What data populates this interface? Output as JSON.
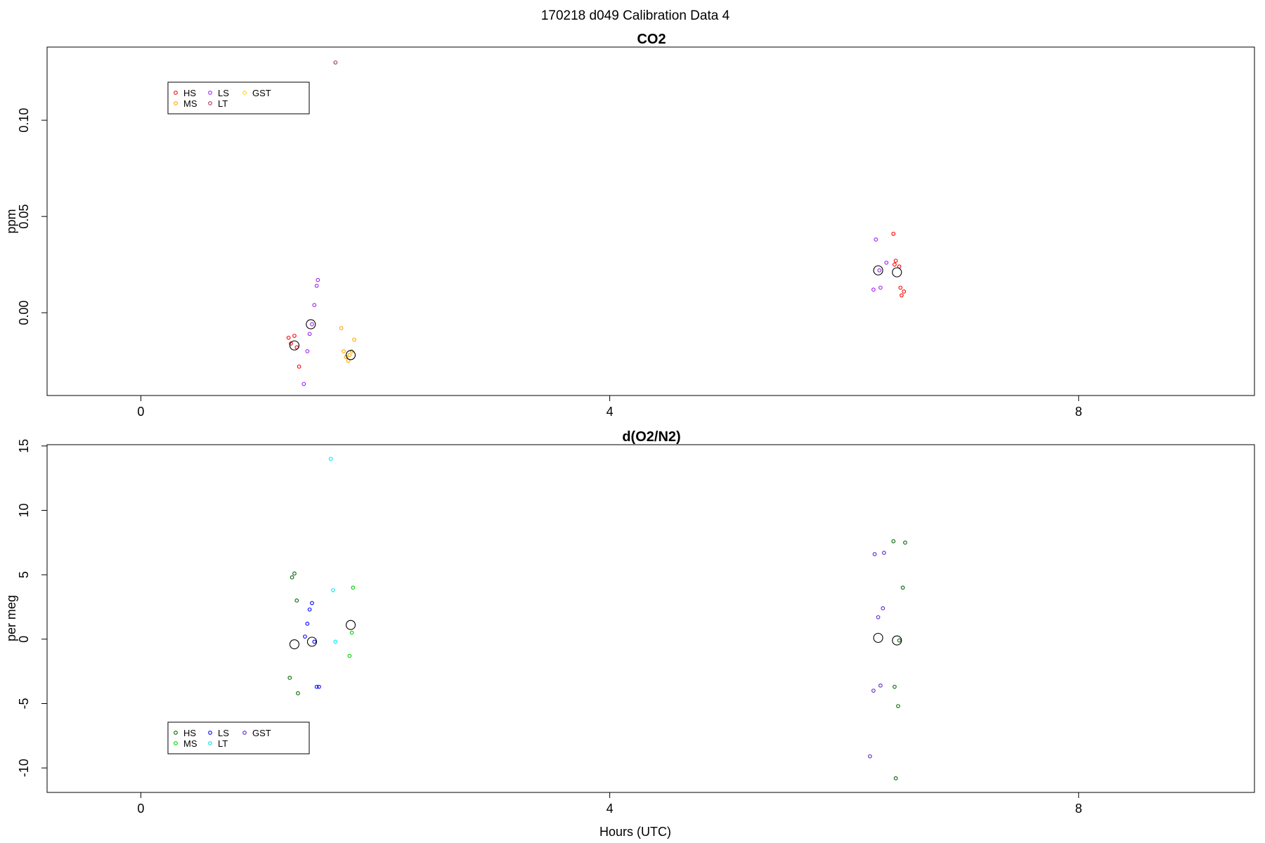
{
  "figure": {
    "suptitle": "170218   d049   Calibration Data 4"
  },
  "chart_data": [
    {
      "type": "scatter",
      "title": "CO2",
      "ylabel": "ppm",
      "xlabel": "",
      "xlim": [
        -0.8,
        9.5
      ],
      "ylim": [
        -0.043,
        0.138
      ],
      "xticks": [
        0,
        4,
        8
      ],
      "xticklabels": [
        "0",
        "4",
        "8"
      ],
      "yticks": [
        0.0,
        0.05,
        0.1
      ],
      "yticklabels": [
        "0.00",
        "0.05",
        "0.10"
      ],
      "grid": false,
      "legend": {
        "placement": "top-left",
        "columns": 3
      },
      "series": [
        {
          "name": "HS",
          "color": "#ff0000",
          "points": [
            [
              1.26,
              -0.013
            ],
            [
              1.31,
              -0.012
            ],
            [
              1.28,
              -0.016
            ],
            [
              1.33,
              -0.018
            ],
            [
              1.35,
              -0.028
            ],
            [
              6.42,
              0.041
            ],
            [
              6.44,
              0.027
            ],
            [
              6.43,
              0.025
            ],
            [
              6.47,
              0.024
            ],
            [
              6.48,
              0.013
            ],
            [
              6.51,
              0.011
            ],
            [
              6.49,
              0.009
            ]
          ]
        },
        {
          "name": "MS",
          "color": "#ffa500",
          "points": [
            [
              1.71,
              -0.008
            ],
            [
              1.73,
              -0.02
            ],
            [
              1.75,
              -0.023
            ],
            [
              1.77,
              -0.025
            ],
            [
              1.8,
              -0.02
            ],
            [
              1.82,
              -0.014
            ],
            [
              1.78,
              -0.022
            ]
          ]
        },
        {
          "name": "LS",
          "color": "#a020f0",
          "points": [
            [
              1.48,
              0.004
            ],
            [
              1.5,
              0.014
            ],
            [
              1.51,
              0.017
            ],
            [
              1.44,
              -0.011
            ],
            [
              1.42,
              -0.02
            ],
            [
              1.39,
              -0.037
            ],
            [
              1.46,
              -0.006
            ],
            [
              6.27,
              0.038
            ],
            [
              6.36,
              0.026
            ],
            [
              6.31,
              0.013
            ],
            [
              6.25,
              0.012
            ],
            [
              6.3,
              0.022
            ]
          ]
        },
        {
          "name": "LT",
          "color": "#b03060",
          "points": [
            [
              1.66,
              0.13
            ]
          ]
        },
        {
          "name": "GST",
          "color": "#ffd700",
          "points": []
        }
      ],
      "means": {
        "color": "#000000",
        "points": [
          [
            1.31,
            -0.017
          ],
          [
            1.45,
            -0.006
          ],
          [
            1.79,
            -0.022
          ],
          [
            6.29,
            0.022
          ],
          [
            6.45,
            0.021
          ]
        ]
      }
    },
    {
      "type": "scatter",
      "title": "d(O2/N2)",
      "ylabel": "per meg",
      "xlabel": "Hours (UTC)",
      "xlim": [
        -0.8,
        9.5
      ],
      "ylim": [
        -11.9,
        15.1
      ],
      "xticks": [
        0,
        4,
        8
      ],
      "xticklabels": [
        "0",
        "4",
        "8"
      ],
      "yticks": [
        -10,
        -5,
        0,
        5,
        10,
        15
      ],
      "yticklabels": [
        "-10",
        "-5",
        "0",
        "5",
        "10",
        "15"
      ],
      "grid": false,
      "legend": {
        "placement": "bottom-left",
        "columns": 3
      },
      "series": [
        {
          "name": "HS",
          "color": "#006400",
          "points": [
            [
              1.29,
              4.8
            ],
            [
              1.31,
              5.1
            ],
            [
              1.33,
              3.0
            ],
            [
              1.27,
              -3.0
            ],
            [
              1.34,
              -4.2
            ],
            [
              6.42,
              7.6
            ],
            [
              6.52,
              7.5
            ],
            [
              6.5,
              4.0
            ],
            [
              6.43,
              -3.7
            ],
            [
              6.46,
              -5.2
            ],
            [
              6.44,
              -10.8
            ],
            [
              6.47,
              -0.1
            ]
          ]
        },
        {
          "name": "MS",
          "color": "#00cd00",
          "points": [
            [
              1.81,
              4.0
            ],
            [
              1.8,
              0.5
            ],
            [
              1.78,
              -1.3
            ]
          ]
        },
        {
          "name": "LS",
          "color": "#0000ff",
          "points": [
            [
              1.46,
              2.8
            ],
            [
              1.44,
              2.3
            ],
            [
              1.42,
              1.2
            ],
            [
              1.4,
              0.2
            ],
            [
              1.5,
              -3.7
            ],
            [
              1.52,
              -3.7
            ],
            [
              1.48,
              -0.2
            ]
          ]
        },
        {
          "name": "LT",
          "color": "#00e5ee",
          "points": [
            [
              1.62,
              14.0
            ],
            [
              1.64,
              3.8
            ],
            [
              1.66,
              -0.2
            ]
          ]
        },
        {
          "name": "GST",
          "color": "#5a1ed2",
          "points": [
            [
              6.26,
              6.6
            ],
            [
              6.34,
              6.7
            ],
            [
              6.33,
              2.4
            ],
            [
              6.29,
              1.7
            ],
            [
              6.31,
              -3.6
            ],
            [
              6.25,
              -4.0
            ],
            [
              6.22,
              -9.1
            ]
          ]
        }
      ],
      "means": {
        "color": "#000000",
        "points": [
          [
            1.31,
            -0.4
          ],
          [
            1.46,
            -0.2
          ],
          [
            1.79,
            1.1
          ],
          [
            6.29,
            0.1
          ],
          [
            6.45,
            -0.1
          ]
        ]
      }
    }
  ]
}
